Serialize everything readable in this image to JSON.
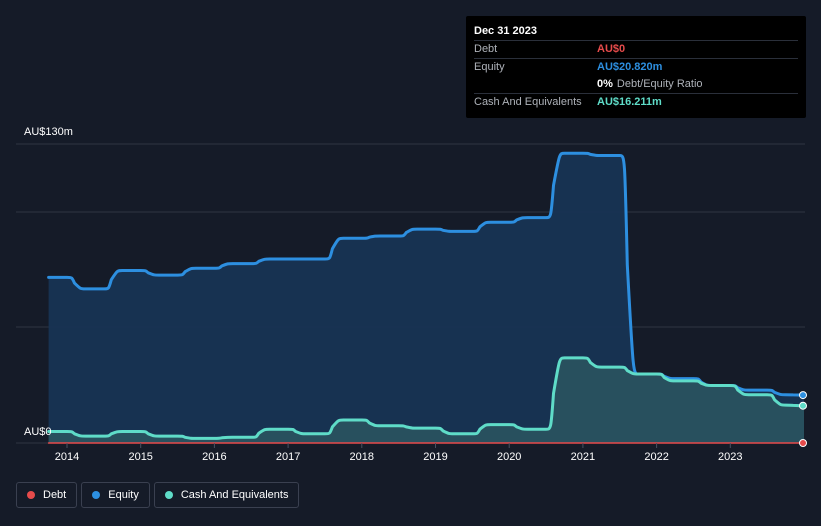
{
  "tooltip": {
    "date": "Dec 31 2023",
    "debt_label": "Debt",
    "debt_value": "AU$0",
    "equity_label": "Equity",
    "equity_value": "AU$20.820m",
    "ratio_value": "0%",
    "ratio_label": "Debt/Equity Ratio",
    "cash_label": "Cash And Equivalents",
    "cash_value": "AU$16.211m"
  },
  "colors": {
    "debt": "#e64b4b",
    "equity": "#2d8fe0",
    "cash": "#5fdcc8",
    "background": "#151b28"
  },
  "legend": [
    {
      "name": "Debt",
      "color": "#e64b4b"
    },
    {
      "name": "Equity",
      "color": "#2d8fe0"
    },
    {
      "name": "Cash And Equivalents",
      "color": "#5fdcc8"
    }
  ],
  "chart_data": {
    "type": "area",
    "ylim": [
      0,
      130
    ],
    "y_tick_labels": [
      "AU$130m",
      "AU$0"
    ],
    "x_tick_labels": [
      "2014",
      "2015",
      "2016",
      "2017",
      "2018",
      "2019",
      "2020",
      "2021",
      "2022",
      "2023"
    ],
    "grid": true,
    "legend_position": "bottom-left",
    "series": [
      {
        "name": "Equity",
        "x": [
          2013.75,
          2014.0,
          2014.25,
          2014.5,
          2014.75,
          2015.0,
          2015.25,
          2015.5,
          2015.75,
          2016.0,
          2016.25,
          2016.5,
          2016.75,
          2017.0,
          2017.25,
          2017.5,
          2017.75,
          2018.0,
          2018.25,
          2018.5,
          2018.75,
          2019.0,
          2019.25,
          2019.5,
          2019.75,
          2020.0,
          2020.25,
          2020.5,
          2020.75,
          2021.0,
          2021.25,
          2021.5,
          2021.75,
          2022.0,
          2022.25,
          2022.5,
          2022.75,
          2023.0,
          2023.25,
          2023.5,
          2023.75,
          2024.0
        ],
        "values": [
          72,
          72,
          67,
          67,
          75,
          75,
          73,
          73,
          76,
          76,
          78,
          78,
          80,
          80,
          80,
          80,
          89,
          89,
          90,
          90,
          93,
          93,
          92,
          92,
          96,
          96,
          98,
          98,
          126,
          126,
          125,
          125,
          30,
          30,
          28,
          28,
          25,
          25,
          23,
          23,
          21,
          20.82
        ]
      },
      {
        "name": "Cash And Equivalents",
        "x": [
          2013.75,
          2014.0,
          2014.25,
          2014.5,
          2014.75,
          2015.0,
          2015.25,
          2015.5,
          2015.75,
          2016.0,
          2016.25,
          2016.5,
          2016.75,
          2017.0,
          2017.25,
          2017.5,
          2017.75,
          2018.0,
          2018.25,
          2018.5,
          2018.75,
          2019.0,
          2019.25,
          2019.5,
          2019.75,
          2020.0,
          2020.25,
          2020.5,
          2020.75,
          2021.0,
          2021.25,
          2021.5,
          2021.75,
          2022.0,
          2022.25,
          2022.5,
          2022.75,
          2023.0,
          2023.25,
          2023.5,
          2023.75,
          2024.0
        ],
        "values": [
          5,
          5,
          3,
          3,
          5,
          5,
          3,
          3,
          2,
          2,
          2.5,
          2.5,
          6,
          6,
          4,
          4,
          10,
          10,
          7.5,
          7.5,
          6.5,
          6.5,
          4,
          4,
          8,
          8,
          6,
          6,
          37,
          37,
          33,
          33,
          30,
          30,
          27,
          27,
          25,
          25,
          21,
          21,
          16.5,
          16.211
        ]
      },
      {
        "name": "Debt",
        "x": [
          2013.75,
          2024.0
        ],
        "values": [
          0,
          0
        ]
      }
    ]
  }
}
